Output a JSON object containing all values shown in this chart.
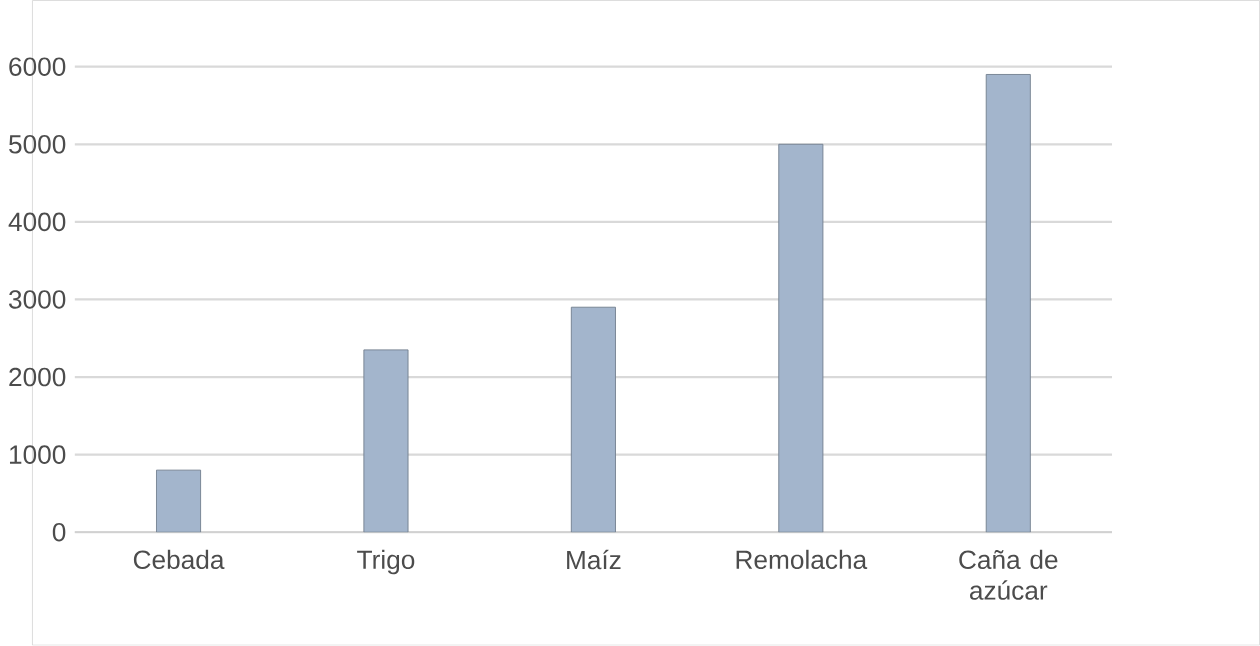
{
  "chart_data": {
    "type": "bar",
    "categories": [
      "Cebada",
      "Trigo",
      "Maíz",
      "Remolacha",
      "Caña de azúcar"
    ],
    "values": [
      800,
      2350,
      2900,
      5000,
      5900
    ],
    "color": "#a3b5cc",
    "ylim": [
      0,
      6000
    ],
    "yticks": [
      0,
      1000,
      2000,
      3000,
      4000,
      5000,
      6000
    ],
    "grid": "y"
  }
}
